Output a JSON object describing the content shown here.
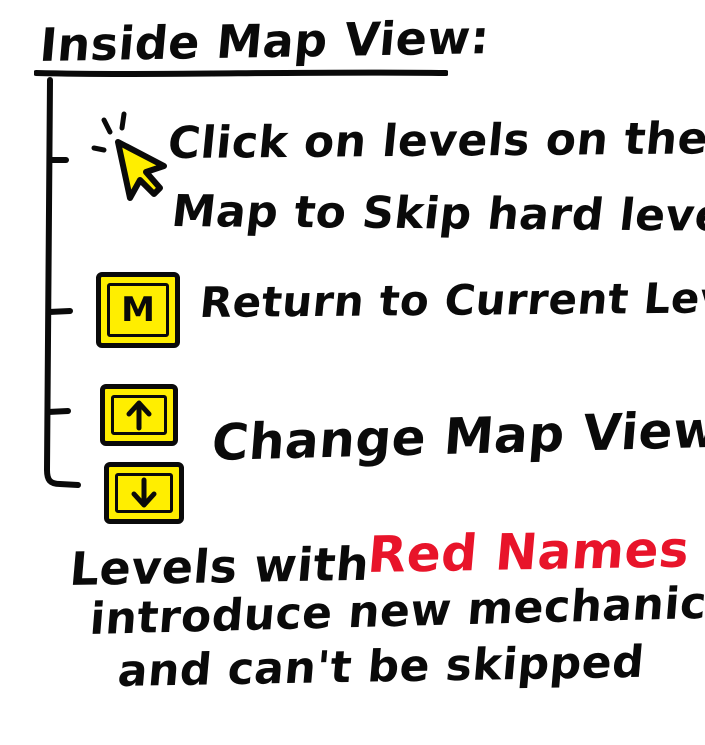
{
  "title": "Inside Map View:",
  "tips": [
    {
      "line1": "Click on levels on the",
      "line2": "Map to Skip hard levels",
      "icon": "mouse-cursor-click-icon"
    },
    {
      "text": "Return to Current Level",
      "key_label": "M",
      "icon": "m-key-icon"
    },
    {
      "text": "Change Map View",
      "icons": [
        "arrow-up-key-icon",
        "arrow-down-key-icon"
      ]
    }
  ],
  "note": {
    "prefix": "Levels with",
    "highlight": "Red Names",
    "line2": "introduce new mechanics",
    "line3": "and can't be skipped"
  },
  "colors": {
    "ink": "#0a0a0a",
    "key_fill": "#ffee00",
    "highlight": "#e8142a"
  }
}
